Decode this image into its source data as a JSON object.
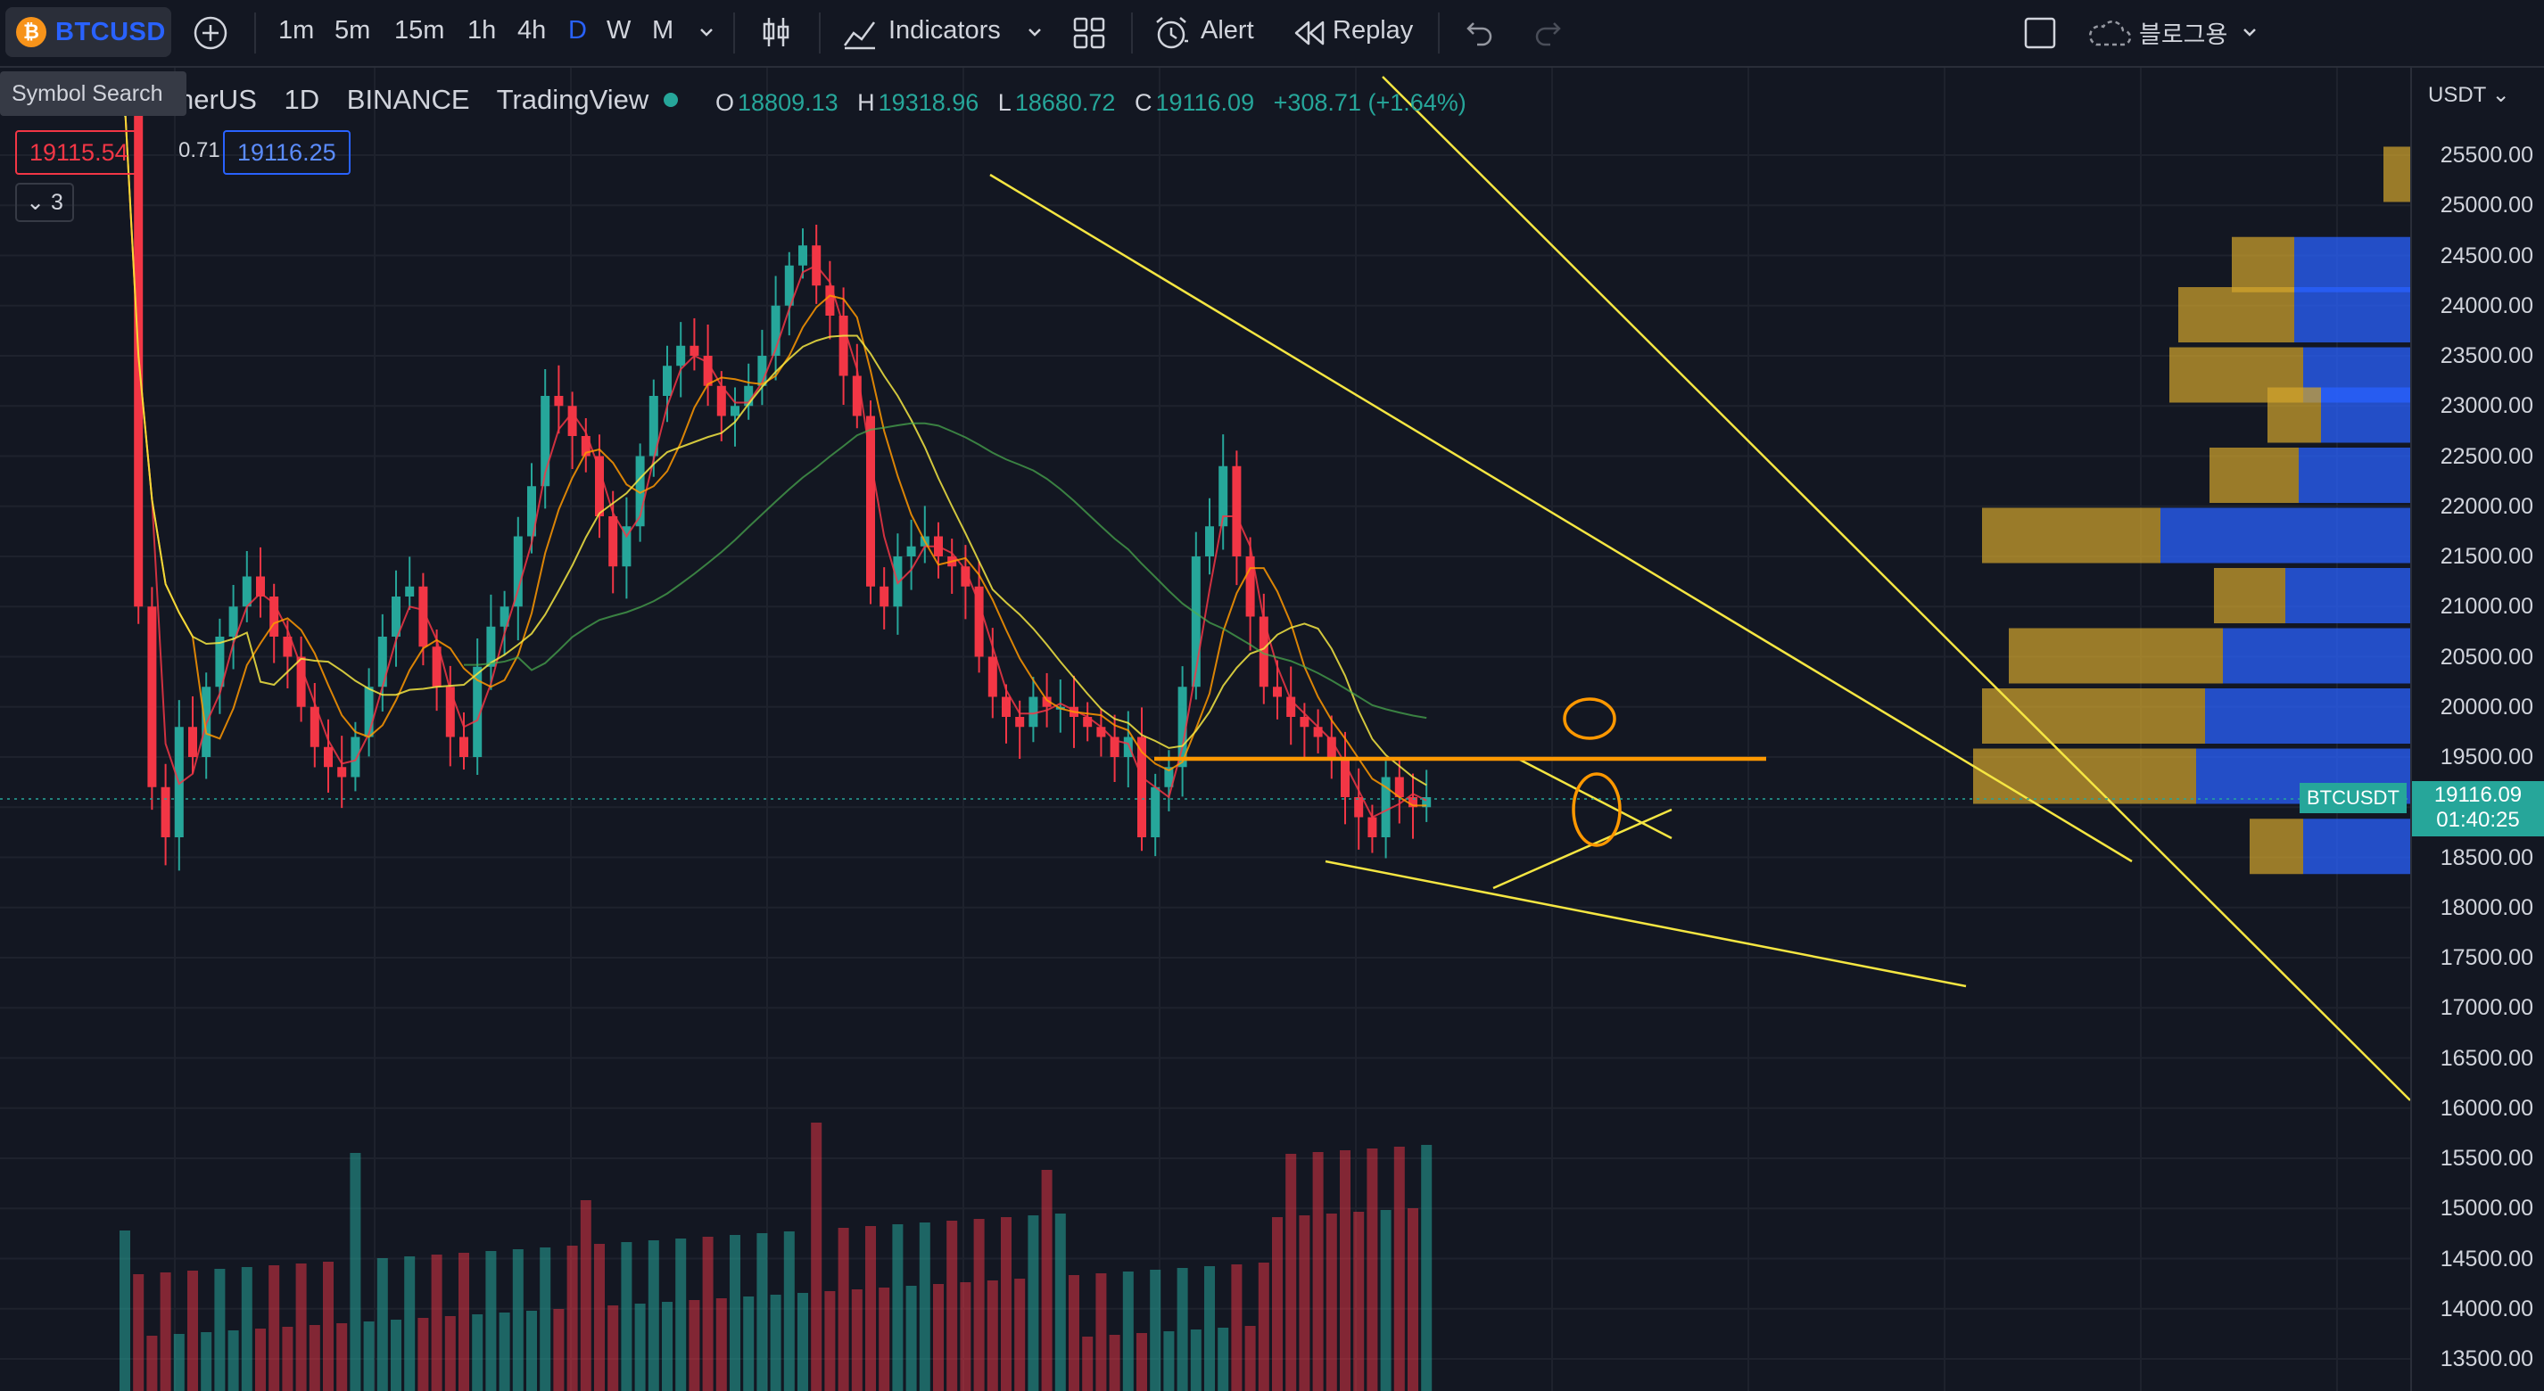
{
  "toolbar": {
    "symbol": "BTCUSD",
    "symbol_coin_glyph": "₿",
    "timeframes": [
      "1m",
      "5m",
      "15m",
      "1h",
      "4h",
      "D",
      "W",
      "M"
    ],
    "active_timeframe": "D",
    "indicators_label": "Indicators",
    "alert_label": "Alert",
    "replay_label": "Replay",
    "layout_name": "블로그용"
  },
  "tooltip": {
    "symbol_search": "Symbol Search"
  },
  "legend": {
    "symbol_fragment": "nerUS",
    "interval": "1D",
    "exchange": "BINANCE",
    "source": "TradingView",
    "open_key": "O",
    "open": "18809.13",
    "high_key": "H",
    "high": "19318.96",
    "low_key": "L",
    "low": "18680.72",
    "close_key": "C",
    "close": "19116.09",
    "change": "+308.71 (+1.64%)",
    "bid": "19115.54",
    "spread": "0.71",
    "ask": "19116.25",
    "indicator_count": "3"
  },
  "price_axis": {
    "currency": "USDT",
    "ticks": [
      "25500.00",
      "25000.00",
      "24500.00",
      "24000.00",
      "23500.00",
      "23000.00",
      "22500.00",
      "22000.00",
      "21500.00",
      "21000.00",
      "20500.00",
      "20000.00",
      "19500.00",
      "19000.00",
      "18500.00",
      "18000.00",
      "17500.00",
      "17000.00",
      "16500.00",
      "16000.00",
      "15500.00",
      "15000.00",
      "14500.00",
      "14000.00",
      "13500.00"
    ],
    "last_price": "19116.09",
    "countdown": "01:40:25",
    "series_label": "BTCUSDT"
  },
  "colors": {
    "background": "#131722",
    "up": "#26a69a",
    "down": "#f23645",
    "trendline": "#f5e642",
    "support_line": "#ff9800",
    "ma_fast": "#f23645",
    "ma_mid": "#ff9800",
    "ma_slow": "#f5e642",
    "ma_long": "#4caf50",
    "vp_up": "#2962ff",
    "vp_down": "#d4a72c",
    "accent": "#2962ff"
  },
  "icons": {
    "add": "plus-circle-icon",
    "chart_type": "candles-icon",
    "indicators": "indicators-icon",
    "templates": "grid-icon",
    "alert": "alarm-clock-icon",
    "replay": "rewind-icon",
    "undo": "undo-icon",
    "redo": "redo-icon",
    "fullscreen": "square-icon",
    "cloud": "cloud-icon"
  }
}
